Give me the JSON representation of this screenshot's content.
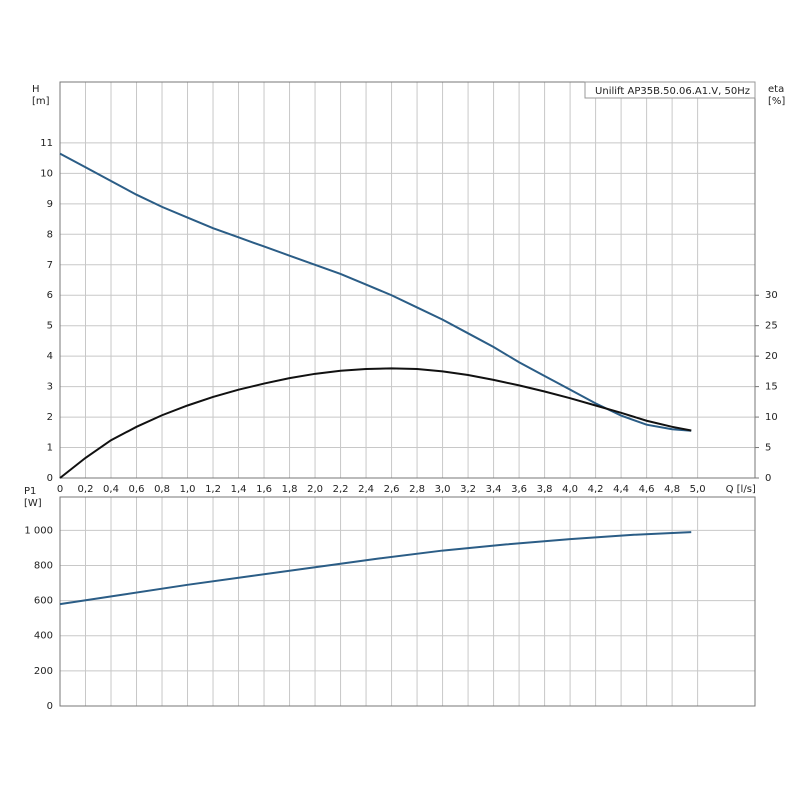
{
  "chart_data": [
    {
      "type": "line",
      "y_label": [
        "H",
        "[m]"
      ],
      "y2_label": [
        "eta",
        "[%]"
      ],
      "x_label": "Q [l/s]",
      "annotation": "Unilift AP35B.50.06.A1.V, 50Hz",
      "x": [
        0,
        0.2,
        0.4,
        0.6,
        0.8,
        1.0,
        1.2,
        1.4,
        1.6,
        1.8,
        2.0,
        2.2,
        2.4,
        2.6,
        2.8,
        3.0,
        3.2,
        3.4,
        3.6,
        3.8,
        4.0,
        4.2,
        4.4,
        4.6,
        4.8,
        4.95
      ],
      "series": [
        {
          "color": "#2b5d86",
          "axis": "y",
          "values": [
            10.65,
            10.2,
            9.75,
            9.3,
            8.9,
            8.55,
            8.2,
            7.9,
            7.6,
            7.3,
            7.0,
            6.7,
            6.35,
            6.0,
            5.6,
            5.2,
            4.75,
            4.3,
            3.8,
            3.35,
            2.9,
            2.45,
            2.05,
            1.75,
            1.6,
            1.55
          ]
        },
        {
          "color": "#111111",
          "axis": "y2",
          "values": [
            0,
            3.3,
            6.2,
            8.4,
            10.3,
            11.9,
            13.3,
            14.5,
            15.5,
            16.4,
            17.1,
            17.6,
            17.9,
            18.0,
            17.9,
            17.5,
            16.9,
            16.1,
            15.2,
            14.2,
            13.1,
            11.9,
            10.7,
            9.4,
            8.4,
            7.8
          ]
        }
      ],
      "xlim": [
        0,
        5.45
      ],
      "xticks": [
        0,
        {
          "value": 0.2,
          "label": "0,2"
        },
        {
          "value": 0.4,
          "label": "0,4"
        },
        {
          "value": 0.6,
          "label": "0,6"
        },
        {
          "value": 0.8,
          "label": "0,8"
        },
        {
          "value": 1.0,
          "label": "1,0"
        },
        {
          "value": 1.2,
          "label": "1,2"
        },
        {
          "value": 1.4,
          "label": "1,4"
        },
        {
          "value": 1.6,
          "label": "1,6"
        },
        {
          "value": 1.8,
          "label": "1,8"
        },
        {
          "value": 2.0,
          "label": "2,0"
        },
        {
          "value": 2.2,
          "label": "2,2"
        },
        {
          "value": 2.4,
          "label": "2,4"
        },
        {
          "value": 2.6,
          "label": "2,6"
        },
        {
          "value": 2.8,
          "label": "2,8"
        },
        {
          "value": 3.0,
          "label": "3,0"
        },
        {
          "value": 3.2,
          "label": "3,2"
        },
        {
          "value": 3.4,
          "label": "3,4"
        },
        {
          "value": 3.6,
          "label": "3,6"
        },
        {
          "value": 3.8,
          "label": "3,8"
        },
        {
          "value": 4.0,
          "label": "4,0"
        },
        {
          "value": 4.2,
          "label": "4,2"
        },
        {
          "value": 4.4,
          "label": "4,4"
        },
        {
          "value": 4.6,
          "label": "4,6"
        },
        {
          "value": 4.8,
          "label": "4,8"
        },
        {
          "value": 5.0,
          "label": "5,0"
        }
      ],
      "ylim": [
        0,
        13
      ],
      "yticks": [
        0,
        1,
        2,
        3,
        4,
        5,
        6,
        7,
        8,
        9,
        10,
        11
      ],
      "y2lim": [
        0,
        65
      ],
      "y2ticks": [
        0,
        5,
        10,
        15,
        20,
        25,
        30
      ],
      "grid": true
    },
    {
      "type": "line",
      "y_label": [
        "P1",
        "[W]"
      ],
      "x": [
        0,
        0.5,
        1.0,
        1.5,
        2.0,
        2.5,
        3.0,
        3.5,
        4.0,
        4.5,
        4.95
      ],
      "series": [
        {
          "color": "#2b5d86",
          "axis": "y",
          "values": [
            580,
            635,
            690,
            740,
            790,
            840,
            885,
            920,
            950,
            975,
            990
          ]
        }
      ],
      "xlim": [
        0,
        5.45
      ],
      "ylim": [
        0,
        1190
      ],
      "yticks": [
        0,
        200,
        400,
        600,
        800,
        {
          "value": 1000,
          "label": "1 000"
        }
      ],
      "grid": true
    }
  ]
}
